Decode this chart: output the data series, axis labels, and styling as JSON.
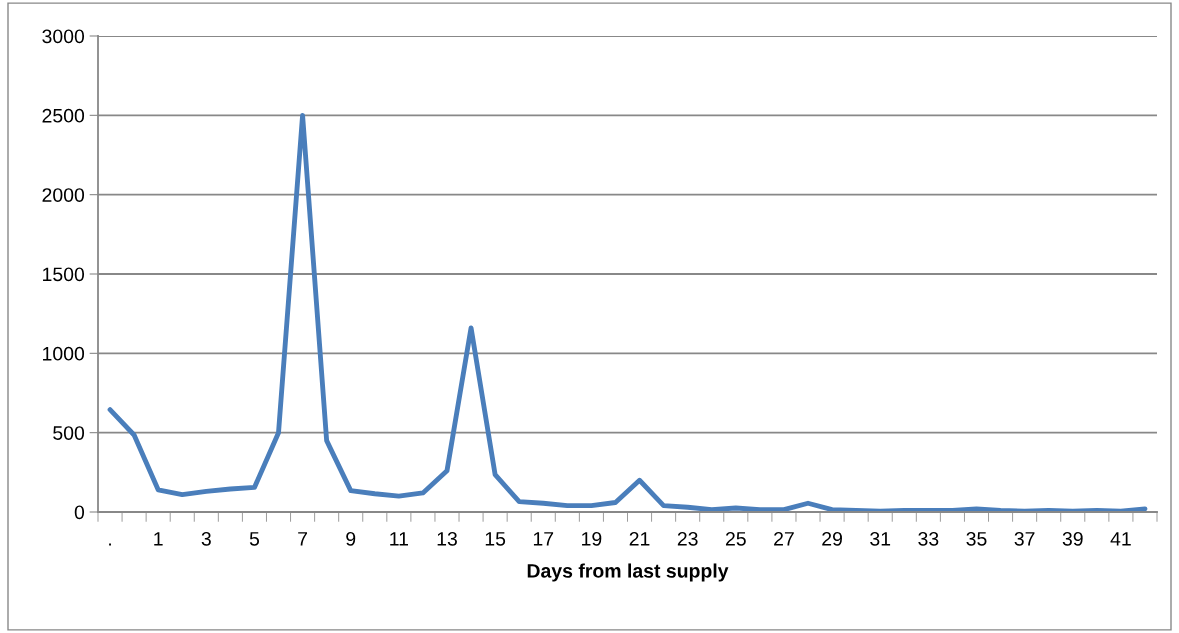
{
  "chart_data": {
    "type": "line",
    "xlabel": "Days from last supply",
    "categories": [
      ".",
      null,
      "1",
      null,
      "3",
      null,
      "5",
      null,
      "7",
      null,
      "9",
      null,
      "11",
      null,
      "13",
      null,
      "15",
      null,
      "17",
      null,
      "19",
      null,
      "21",
      null,
      "23",
      null,
      "25",
      null,
      "27",
      null,
      "29",
      null,
      "31",
      null,
      "33",
      null,
      "35",
      null,
      "37",
      null,
      "39",
      null,
      "41",
      null
    ],
    "values": [
      645,
      485,
      140,
      110,
      130,
      145,
      155,
      500,
      2500,
      450,
      135,
      115,
      100,
      120,
      260,
      1160,
      235,
      65,
      55,
      40,
      40,
      60,
      200,
      40,
      30,
      15,
      25,
      15,
      15,
      55,
      15,
      10,
      5,
      10,
      10,
      10,
      20,
      10,
      5,
      10,
      5,
      10,
      5,
      20
    ],
    "color": "#4a7ebb",
    "ylim": [
      0,
      3000
    ],
    "yticks": [
      0,
      500,
      1000,
      1500,
      2000,
      2500,
      3000
    ],
    "grid": "y",
    "line_style": "solid"
  }
}
